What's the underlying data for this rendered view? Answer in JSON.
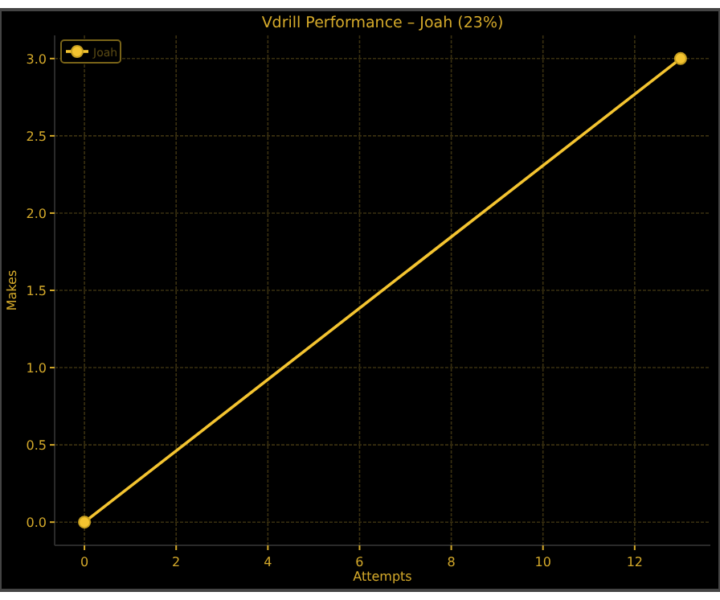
{
  "chart_data": {
    "type": "line",
    "title": "Vdrill Performance – Joah (23%)",
    "xlabel": "Attempts",
    "ylabel": "Makes",
    "x": [
      0,
      13
    ],
    "series": [
      {
        "name": "Joah",
        "color": "#f4c430",
        "values": [
          0,
          3
        ]
      }
    ],
    "xlim": [
      -0.65,
      13.65
    ],
    "ylim": [
      -0.15,
      3.15
    ],
    "xticks": [
      0,
      2,
      4,
      6,
      8,
      10,
      12
    ],
    "yticks": [
      {
        "value": 0,
        "label": "0.0"
      },
      {
        "value": 0.5,
        "label": "0.5"
      },
      {
        "value": 1,
        "label": "1.0"
      },
      {
        "value": 1.5,
        "label": "1.5"
      },
      {
        "value": 2,
        "label": "2.0"
      },
      {
        "value": 2.5,
        "label": "2.5"
      },
      {
        "value": 3,
        "label": "3.0"
      }
    ],
    "grid": true,
    "legend": "top left",
    "marker": "circle",
    "line_style": "solid"
  }
}
